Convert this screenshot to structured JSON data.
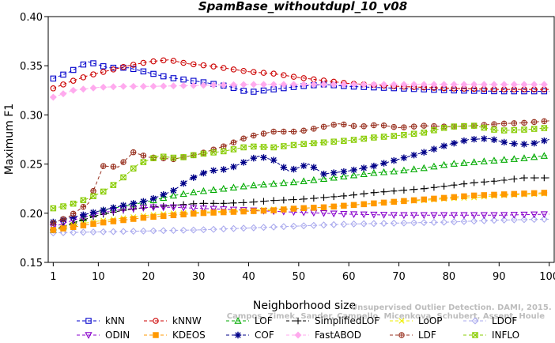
{
  "chart_data": {
    "type": "line",
    "title": "SpamBase_withoutdupl_10_v08",
    "xlabel": "Neighborhood size",
    "ylabel": "Maximum F1",
    "xlim": [
      0,
      101
    ],
    "ylim": [
      0.15,
      0.4
    ],
    "xticks": [
      1,
      10,
      20,
      30,
      40,
      50,
      60,
      70,
      80,
      90,
      100
    ],
    "yticks": [
      0.15,
      0.2,
      0.25,
      0.3,
      0.35,
      0.4
    ],
    "ytick_labels": [
      "0.15",
      "0.20",
      "0.25",
      "0.30",
      "0.35",
      "0.40"
    ],
    "grid": false,
    "legend_position": "bottom",
    "watermark": {
      "line1": "Unsupervised Outlier Detection. DAMI, 2015.",
      "line2": "Campos, Zimek, Sander, Campello, Micenkova, Schubert, Assent, Houle"
    },
    "series": [
      {
        "name": "kNN",
        "color": "#0000cc",
        "marker": "square",
        "points": [
          [
            1,
            0.337
          ],
          [
            4,
            0.343
          ],
          [
            8,
            0.354
          ],
          [
            12,
            0.348
          ],
          [
            16,
            0.348
          ],
          [
            20,
            0.343
          ],
          [
            24,
            0.338
          ],
          [
            30,
            0.334
          ],
          [
            36,
            0.329
          ],
          [
            40,
            0.323
          ],
          [
            45,
            0.326
          ],
          [
            50,
            0.329
          ],
          [
            55,
            0.331
          ],
          [
            60,
            0.329
          ],
          [
            70,
            0.327
          ],
          [
            80,
            0.325
          ],
          [
            90,
            0.324
          ],
          [
            100,
            0.324
          ]
        ]
      },
      {
        "name": "kNNW",
        "color": "#cc0000",
        "marker": "circle",
        "points": [
          [
            1,
            0.327
          ],
          [
            4,
            0.333
          ],
          [
            8,
            0.34
          ],
          [
            12,
            0.345
          ],
          [
            16,
            0.35
          ],
          [
            20,
            0.354
          ],
          [
            24,
            0.356
          ],
          [
            28,
            0.352
          ],
          [
            32,
            0.35
          ],
          [
            36,
            0.347
          ],
          [
            40,
            0.344
          ],
          [
            45,
            0.342
          ],
          [
            50,
            0.338
          ],
          [
            55,
            0.335
          ],
          [
            60,
            0.332
          ],
          [
            70,
            0.329
          ],
          [
            80,
            0.327
          ],
          [
            90,
            0.326
          ],
          [
            100,
            0.326
          ]
        ]
      },
      {
        "name": "LOF",
        "color": "#00aa00",
        "marker": "triangle-up",
        "points": [
          [
            1,
            0.183
          ],
          [
            5,
            0.19
          ],
          [
            10,
            0.202
          ],
          [
            15,
            0.207
          ],
          [
            20,
            0.212
          ],
          [
            25,
            0.218
          ],
          [
            30,
            0.222
          ],
          [
            35,
            0.225
          ],
          [
            40,
            0.228
          ],
          [
            45,
            0.23
          ],
          [
            50,
            0.232
          ],
          [
            55,
            0.235
          ],
          [
            60,
            0.238
          ],
          [
            65,
            0.241
          ],
          [
            70,
            0.243
          ],
          [
            75,
            0.246
          ],
          [
            80,
            0.25
          ],
          [
            85,
            0.252
          ],
          [
            90,
            0.254
          ],
          [
            95,
            0.256
          ],
          [
            100,
            0.259
          ]
        ]
      },
      {
        "name": "SimplifiedLOF",
        "color": "#000000",
        "marker": "plus",
        "points": [
          [
            1,
            0.183
          ],
          [
            5,
            0.19
          ],
          [
            10,
            0.198
          ],
          [
            15,
            0.203
          ],
          [
            20,
            0.206
          ],
          [
            25,
            0.208
          ],
          [
            30,
            0.21
          ],
          [
            35,
            0.21
          ],
          [
            40,
            0.211
          ],
          [
            45,
            0.213
          ],
          [
            50,
            0.214
          ],
          [
            55,
            0.216
          ],
          [
            60,
            0.218
          ],
          [
            65,
            0.221
          ],
          [
            70,
            0.223
          ],
          [
            75,
            0.225
          ],
          [
            80,
            0.228
          ],
          [
            85,
            0.231
          ],
          [
            90,
            0.233
          ],
          [
            95,
            0.236
          ],
          [
            100,
            0.236
          ]
        ]
      },
      {
        "name": "LoOP",
        "color": "#eeee00",
        "marker": "x",
        "points": [
          [
            1,
            0.183
          ],
          [
            5,
            0.188
          ],
          [
            10,
            0.192
          ],
          [
            15,
            0.195
          ],
          [
            20,
            0.198
          ],
          [
            25,
            0.2
          ],
          [
            30,
            0.201
          ],
          [
            35,
            0.202
          ],
          [
            40,
            0.203
          ],
          [
            45,
            0.204
          ],
          [
            50,
            0.205
          ],
          [
            55,
            0.206
          ],
          [
            60,
            0.208
          ],
          [
            65,
            0.21
          ],
          [
            70,
            0.212
          ],
          [
            75,
            0.213
          ],
          [
            80,
            0.215
          ],
          [
            85,
            0.216
          ],
          [
            90,
            0.218
          ],
          [
            95,
            0.219
          ],
          [
            100,
            0.22
          ]
        ]
      },
      {
        "name": "LDOF",
        "color": "#aaaaee",
        "marker": "diamond",
        "points": [
          [
            1,
            0.18
          ],
          [
            10,
            0.181
          ],
          [
            20,
            0.182
          ],
          [
            30,
            0.183
          ],
          [
            40,
            0.185
          ],
          [
            50,
            0.187
          ],
          [
            60,
            0.189
          ],
          [
            70,
            0.19
          ],
          [
            80,
            0.191
          ],
          [
            90,
            0.193
          ],
          [
            100,
            0.194
          ]
        ]
      },
      {
        "name": "ODIN",
        "color": "#8800cc",
        "marker": "triangle-down",
        "points": [
          [
            1,
            0.186
          ],
          [
            5,
            0.193
          ],
          [
            10,
            0.2
          ],
          [
            15,
            0.204
          ],
          [
            20,
            0.206
          ],
          [
            25,
            0.206
          ],
          [
            30,
            0.205
          ],
          [
            40,
            0.203
          ],
          [
            50,
            0.201
          ],
          [
            60,
            0.199
          ],
          [
            70,
            0.198
          ],
          [
            80,
            0.198
          ],
          [
            90,
            0.198
          ],
          [
            100,
            0.199
          ]
        ]
      },
      {
        "name": "KDEOS",
        "color": "#ff9900",
        "marker": "square-filled",
        "points": [
          [
            1,
            0.183
          ],
          [
            5,
            0.186
          ],
          [
            10,
            0.19
          ],
          [
            15,
            0.193
          ],
          [
            20,
            0.196
          ],
          [
            25,
            0.198
          ],
          [
            30,
            0.2
          ],
          [
            35,
            0.201
          ],
          [
            40,
            0.202
          ],
          [
            45,
            0.203
          ],
          [
            50,
            0.205
          ],
          [
            55,
            0.206
          ],
          [
            60,
            0.208
          ],
          [
            65,
            0.21
          ],
          [
            70,
            0.212
          ],
          [
            75,
            0.214
          ],
          [
            80,
            0.216
          ],
          [
            85,
            0.218
          ],
          [
            90,
            0.219
          ],
          [
            95,
            0.22
          ],
          [
            100,
            0.221
          ]
        ]
      },
      {
        "name": "COF",
        "color": "#000088",
        "marker": "asterisk",
        "points": [
          [
            1,
            0.191
          ],
          [
            5,
            0.196
          ],
          [
            10,
            0.202
          ],
          [
            15,
            0.208
          ],
          [
            20,
            0.213
          ],
          [
            25,
            0.223
          ],
          [
            28,
            0.234
          ],
          [
            32,
            0.243
          ],
          [
            36,
            0.245
          ],
          [
            40,
            0.254
          ],
          [
            42,
            0.258
          ],
          [
            45,
            0.254
          ],
          [
            48,
            0.243
          ],
          [
            52,
            0.25
          ],
          [
            55,
            0.24
          ],
          [
            60,
            0.243
          ],
          [
            65,
            0.248
          ],
          [
            70,
            0.255
          ],
          [
            75,
            0.262
          ],
          [
            80,
            0.27
          ],
          [
            84,
            0.275
          ],
          [
            88,
            0.276
          ],
          [
            92,
            0.271
          ],
          [
            96,
            0.27
          ],
          [
            100,
            0.275
          ]
        ]
      },
      {
        "name": "FastABOD",
        "color": "#ffaaee",
        "marker": "diamond-filled",
        "points": [
          [
            1,
            0.318
          ],
          [
            5,
            0.325
          ],
          [
            10,
            0.328
          ],
          [
            15,
            0.329
          ],
          [
            20,
            0.329
          ],
          [
            30,
            0.33
          ],
          [
            40,
            0.331
          ],
          [
            50,
            0.331
          ],
          [
            60,
            0.331
          ],
          [
            70,
            0.331
          ],
          [
            80,
            0.331
          ],
          [
            90,
            0.331
          ],
          [
            100,
            0.331
          ]
        ]
      },
      {
        "name": "LDF",
        "color": "#993322",
        "marker": "circle-plus",
        "points": [
          [
            1,
            0.19
          ],
          [
            4,
            0.196
          ],
          [
            8,
            0.21
          ],
          [
            11,
            0.248
          ],
          [
            14,
            0.247
          ],
          [
            17,
            0.262
          ],
          [
            20,
            0.257
          ],
          [
            25,
            0.255
          ],
          [
            30,
            0.26
          ],
          [
            35,
            0.268
          ],
          [
            40,
            0.278
          ],
          [
            45,
            0.283
          ],
          [
            50,
            0.283
          ],
          [
            55,
            0.288
          ],
          [
            58,
            0.291
          ],
          [
            62,
            0.288
          ],
          [
            66,
            0.29
          ],
          [
            70,
            0.287
          ],
          [
            75,
            0.289
          ],
          [
            80,
            0.288
          ],
          [
            85,
            0.289
          ],
          [
            90,
            0.291
          ],
          [
            95,
            0.292
          ],
          [
            100,
            0.294
          ]
        ]
      },
      {
        "name": "INFLO",
        "color": "#88cc00",
        "marker": "box-x",
        "points": [
          [
            1,
            0.205
          ],
          [
            4,
            0.208
          ],
          [
            8,
            0.215
          ],
          [
            11,
            0.222
          ],
          [
            14,
            0.232
          ],
          [
            18,
            0.25
          ],
          [
            22,
            0.258
          ],
          [
            26,
            0.256
          ],
          [
            30,
            0.26
          ],
          [
            35,
            0.263
          ],
          [
            40,
            0.268
          ],
          [
            45,
            0.267
          ],
          [
            50,
            0.27
          ],
          [
            55,
            0.272
          ],
          [
            60,
            0.274
          ],
          [
            65,
            0.277
          ],
          [
            70,
            0.279
          ],
          [
            75,
            0.282
          ],
          [
            80,
            0.288
          ],
          [
            85,
            0.289
          ],
          [
            90,
            0.284
          ],
          [
            95,
            0.285
          ],
          [
            100,
            0.287
          ]
        ]
      }
    ]
  }
}
